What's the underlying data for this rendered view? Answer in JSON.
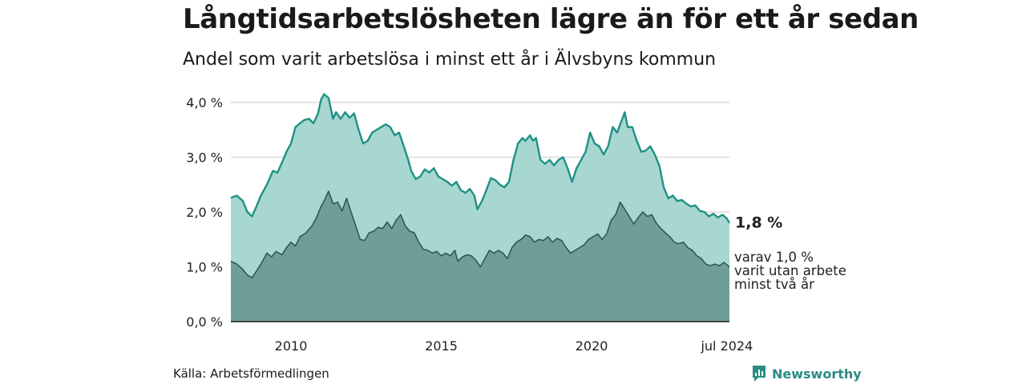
{
  "header": {
    "title": "Långtidsarbetslösheten lägre än för ett år sedan",
    "subtitle": "Andel som varit arbetslösa i minst ett år i Älvsbyns kommun"
  },
  "footer": {
    "source": "Källa: Arbetsförmedlingen",
    "brand": "Newsworthy"
  },
  "colors": {
    "outer_line": "#1f9186",
    "outer_fill": "#a7d7d0",
    "inner_line": "#2e5955",
    "inner_fill": "#709e96",
    "grid": "#dcdcdc",
    "brand": "#2a8c84"
  },
  "chart_data": {
    "type": "area",
    "title": "Långtidsarbetslösheten lägre än för ett år sedan",
    "subtitle": "Andel som varit arbetslösa i minst ett år i Älvsbyns kommun",
    "xlabel": "",
    "ylabel": "",
    "x_range": [
      2008.0,
      2024.583
    ],
    "ylim": [
      0,
      4.0
    ],
    "y_ticks": [
      0,
      1,
      2,
      3,
      4
    ],
    "y_tick_labels": [
      "0,0 %",
      "1,0 %",
      "2,0 %",
      "3,0 %",
      "4,0 %"
    ],
    "x_ticks": [
      2010,
      2015,
      2020,
      2024.5
    ],
    "x_tick_labels": [
      "2010",
      "2015",
      "2020",
      "jul 2024"
    ],
    "grid": true,
    "series": [
      {
        "name": "minst ett år",
        "end_label": "1,8 %",
        "points": [
          [
            2008.0,
            2.26
          ],
          [
            2008.2,
            2.3
          ],
          [
            2008.4,
            2.2
          ],
          [
            2008.55,
            2.0
          ],
          [
            2008.7,
            1.92
          ],
          [
            2008.85,
            2.1
          ],
          [
            2009.0,
            2.3
          ],
          [
            2009.2,
            2.5
          ],
          [
            2009.4,
            2.75
          ],
          [
            2009.55,
            2.72
          ],
          [
            2009.7,
            2.9
          ],
          [
            2009.85,
            3.1
          ],
          [
            2010.0,
            3.25
          ],
          [
            2010.15,
            3.55
          ],
          [
            2010.3,
            3.62
          ],
          [
            2010.45,
            3.68
          ],
          [
            2010.6,
            3.7
          ],
          [
            2010.75,
            3.62
          ],
          [
            2010.9,
            3.8
          ],
          [
            2011.0,
            4.05
          ],
          [
            2011.1,
            4.15
          ],
          [
            2011.25,
            4.08
          ],
          [
            2011.4,
            3.7
          ],
          [
            2011.5,
            3.82
          ],
          [
            2011.65,
            3.7
          ],
          [
            2011.8,
            3.82
          ],
          [
            2011.95,
            3.72
          ],
          [
            2012.1,
            3.8
          ],
          [
            2012.25,
            3.5
          ],
          [
            2012.4,
            3.25
          ],
          [
            2012.55,
            3.3
          ],
          [
            2012.7,
            3.45
          ],
          [
            2012.85,
            3.5
          ],
          [
            2013.0,
            3.55
          ],
          [
            2013.15,
            3.6
          ],
          [
            2013.3,
            3.55
          ],
          [
            2013.45,
            3.4
          ],
          [
            2013.6,
            3.45
          ],
          [
            2013.75,
            3.2
          ],
          [
            2013.9,
            2.95
          ],
          [
            2014.0,
            2.75
          ],
          [
            2014.15,
            2.6
          ],
          [
            2014.3,
            2.65
          ],
          [
            2014.45,
            2.78
          ],
          [
            2014.6,
            2.72
          ],
          [
            2014.75,
            2.8
          ],
          [
            2014.9,
            2.65
          ],
          [
            2015.05,
            2.6
          ],
          [
            2015.2,
            2.55
          ],
          [
            2015.35,
            2.48
          ],
          [
            2015.5,
            2.55
          ],
          [
            2015.65,
            2.4
          ],
          [
            2015.8,
            2.35
          ],
          [
            2015.95,
            2.42
          ],
          [
            2016.1,
            2.3
          ],
          [
            2016.2,
            2.05
          ],
          [
            2016.35,
            2.2
          ],
          [
            2016.5,
            2.4
          ],
          [
            2016.65,
            2.62
          ],
          [
            2016.8,
            2.58
          ],
          [
            2016.95,
            2.5
          ],
          [
            2017.1,
            2.45
          ],
          [
            2017.25,
            2.55
          ],
          [
            2017.4,
            2.95
          ],
          [
            2017.55,
            3.25
          ],
          [
            2017.7,
            3.35
          ],
          [
            2017.8,
            3.3
          ],
          [
            2017.95,
            3.4
          ],
          [
            2018.05,
            3.3
          ],
          [
            2018.15,
            3.35
          ],
          [
            2018.3,
            2.95
          ],
          [
            2018.45,
            2.88
          ],
          [
            2018.6,
            2.95
          ],
          [
            2018.75,
            2.85
          ],
          [
            2018.9,
            2.95
          ],
          [
            2019.05,
            3.0
          ],
          [
            2019.2,
            2.8
          ],
          [
            2019.35,
            2.55
          ],
          [
            2019.5,
            2.8
          ],
          [
            2019.65,
            2.95
          ],
          [
            2019.8,
            3.1
          ],
          [
            2019.95,
            3.45
          ],
          [
            2020.1,
            3.25
          ],
          [
            2020.25,
            3.2
          ],
          [
            2020.4,
            3.05
          ],
          [
            2020.55,
            3.2
          ],
          [
            2020.7,
            3.55
          ],
          [
            2020.85,
            3.45
          ],
          [
            2020.95,
            3.6
          ],
          [
            2021.1,
            3.82
          ],
          [
            2021.2,
            3.55
          ],
          [
            2021.35,
            3.55
          ],
          [
            2021.5,
            3.3
          ],
          [
            2021.65,
            3.1
          ],
          [
            2021.8,
            3.12
          ],
          [
            2021.95,
            3.2
          ],
          [
            2022.1,
            3.05
          ],
          [
            2022.25,
            2.85
          ],
          [
            2022.4,
            2.45
          ],
          [
            2022.55,
            2.25
          ],
          [
            2022.7,
            2.3
          ],
          [
            2022.85,
            2.2
          ],
          [
            2023.0,
            2.22
          ],
          [
            2023.15,
            2.15
          ],
          [
            2023.3,
            2.1
          ],
          [
            2023.45,
            2.12
          ],
          [
            2023.6,
            2.02
          ],
          [
            2023.75,
            2.0
          ],
          [
            2023.9,
            1.92
          ],
          [
            2024.05,
            1.97
          ],
          [
            2024.2,
            1.9
          ],
          [
            2024.35,
            1.95
          ],
          [
            2024.5,
            1.88
          ],
          [
            2024.583,
            1.8
          ]
        ]
      },
      {
        "name": "minst två år",
        "end_label": "varav 1,0 %",
        "end_label_lines": [
          "varit utan arbete",
          "minst två år"
        ],
        "points": [
          [
            2008.0,
            1.1
          ],
          [
            2008.2,
            1.05
          ],
          [
            2008.4,
            0.95
          ],
          [
            2008.55,
            0.85
          ],
          [
            2008.7,
            0.8
          ],
          [
            2008.85,
            0.92
          ],
          [
            2009.0,
            1.05
          ],
          [
            2009.2,
            1.25
          ],
          [
            2009.35,
            1.18
          ],
          [
            2009.5,
            1.28
          ],
          [
            2009.7,
            1.22
          ],
          [
            2009.85,
            1.35
          ],
          [
            2010.0,
            1.45
          ],
          [
            2010.15,
            1.38
          ],
          [
            2010.3,
            1.55
          ],
          [
            2010.5,
            1.62
          ],
          [
            2010.7,
            1.75
          ],
          [
            2010.85,
            1.9
          ],
          [
            2011.0,
            2.1
          ],
          [
            2011.1,
            2.2
          ],
          [
            2011.25,
            2.38
          ],
          [
            2011.4,
            2.15
          ],
          [
            2011.55,
            2.18
          ],
          [
            2011.7,
            2.02
          ],
          [
            2011.85,
            2.25
          ],
          [
            2012.0,
            2.0
          ],
          [
            2012.15,
            1.75
          ],
          [
            2012.3,
            1.5
          ],
          [
            2012.45,
            1.48
          ],
          [
            2012.6,
            1.62
          ],
          [
            2012.75,
            1.65
          ],
          [
            2012.9,
            1.72
          ],
          [
            2013.05,
            1.7
          ],
          [
            2013.2,
            1.82
          ],
          [
            2013.35,
            1.7
          ],
          [
            2013.5,
            1.85
          ],
          [
            2013.65,
            1.95
          ],
          [
            2013.8,
            1.75
          ],
          [
            2013.95,
            1.65
          ],
          [
            2014.1,
            1.62
          ],
          [
            2014.25,
            1.45
          ],
          [
            2014.4,
            1.32
          ],
          [
            2014.55,
            1.3
          ],
          [
            2014.7,
            1.25
          ],
          [
            2014.85,
            1.28
          ],
          [
            2015.0,
            1.2
          ],
          [
            2015.15,
            1.25
          ],
          [
            2015.3,
            1.2
          ],
          [
            2015.45,
            1.3
          ],
          [
            2015.55,
            1.1
          ],
          [
            2015.7,
            1.18
          ],
          [
            2015.85,
            1.22
          ],
          [
            2016.0,
            1.2
          ],
          [
            2016.15,
            1.12
          ],
          [
            2016.3,
            1.0
          ],
          [
            2016.45,
            1.15
          ],
          [
            2016.6,
            1.3
          ],
          [
            2016.75,
            1.25
          ],
          [
            2016.9,
            1.3
          ],
          [
            2017.05,
            1.25
          ],
          [
            2017.2,
            1.15
          ],
          [
            2017.35,
            1.35
          ],
          [
            2017.5,
            1.45
          ],
          [
            2017.65,
            1.5
          ],
          [
            2017.8,
            1.58
          ],
          [
            2017.95,
            1.55
          ],
          [
            2018.1,
            1.45
          ],
          [
            2018.25,
            1.5
          ],
          [
            2018.4,
            1.48
          ],
          [
            2018.55,
            1.55
          ],
          [
            2018.7,
            1.45
          ],
          [
            2018.85,
            1.52
          ],
          [
            2019.0,
            1.48
          ],
          [
            2019.15,
            1.35
          ],
          [
            2019.3,
            1.25
          ],
          [
            2019.45,
            1.3
          ],
          [
            2019.6,
            1.35
          ],
          [
            2019.75,
            1.4
          ],
          [
            2019.9,
            1.5
          ],
          [
            2020.05,
            1.55
          ],
          [
            2020.2,
            1.6
          ],
          [
            2020.35,
            1.5
          ],
          [
            2020.5,
            1.6
          ],
          [
            2020.65,
            1.85
          ],
          [
            2020.8,
            1.95
          ],
          [
            2020.95,
            2.18
          ],
          [
            2021.1,
            2.05
          ],
          [
            2021.25,
            1.92
          ],
          [
            2021.4,
            1.78
          ],
          [
            2021.55,
            1.9
          ],
          [
            2021.7,
            2.0
          ],
          [
            2021.85,
            1.92
          ],
          [
            2022.0,
            1.95
          ],
          [
            2022.15,
            1.8
          ],
          [
            2022.3,
            1.7
          ],
          [
            2022.45,
            1.62
          ],
          [
            2022.6,
            1.55
          ],
          [
            2022.75,
            1.45
          ],
          [
            2022.9,
            1.42
          ],
          [
            2023.05,
            1.45
          ],
          [
            2023.2,
            1.35
          ],
          [
            2023.35,
            1.3
          ],
          [
            2023.5,
            1.2
          ],
          [
            2023.65,
            1.15
          ],
          [
            2023.8,
            1.05
          ],
          [
            2023.95,
            1.02
          ],
          [
            2024.1,
            1.05
          ],
          [
            2024.25,
            1.02
          ],
          [
            2024.4,
            1.08
          ],
          [
            2024.583,
            1.0
          ]
        ]
      }
    ]
  }
}
